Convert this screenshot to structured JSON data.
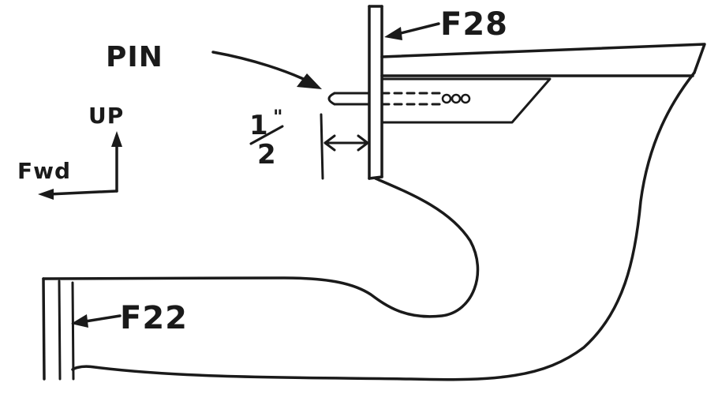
{
  "labels": {
    "pin": "PIN",
    "f28": "F28",
    "f22": "F22",
    "up": "UP",
    "fwd": "Fwd",
    "half_num": "1",
    "half_mark": "\"",
    "half_den": "2"
  },
  "ink_color": "#1a1a1a"
}
